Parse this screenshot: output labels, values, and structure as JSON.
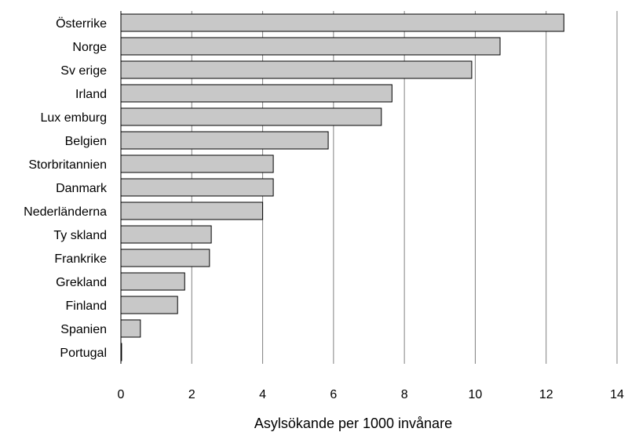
{
  "chart_data": {
    "type": "bar",
    "orientation": "horizontal",
    "title": "",
    "xlabel": "Asylsökande per 1000 invånare",
    "ylabel": "",
    "xlim": [
      0,
      14
    ],
    "x_ticks": [
      "0",
      "2",
      "4",
      "6",
      "8",
      "10",
      "12",
      "14"
    ],
    "grid": "vertical",
    "legend": "none",
    "bar_color": "#c8c8c8",
    "bar_edge_color": "#000000",
    "gridline_color": "#808080",
    "categories": [
      "Österrike",
      "Norge",
      "Sv erige",
      "Irland",
      "Lux emburg",
      "Belgien",
      "Storbritannien",
      "Danmark",
      "Nederländerna",
      "Ty skland",
      "Frankrike",
      "Grekland",
      "Finland",
      "Spanien",
      "Portugal"
    ],
    "values": [
      12.5,
      10.7,
      9.9,
      7.65,
      7.35,
      5.85,
      4.3,
      4.3,
      4.0,
      2.55,
      2.5,
      1.8,
      1.6,
      0.55,
      0.02
    ]
  }
}
